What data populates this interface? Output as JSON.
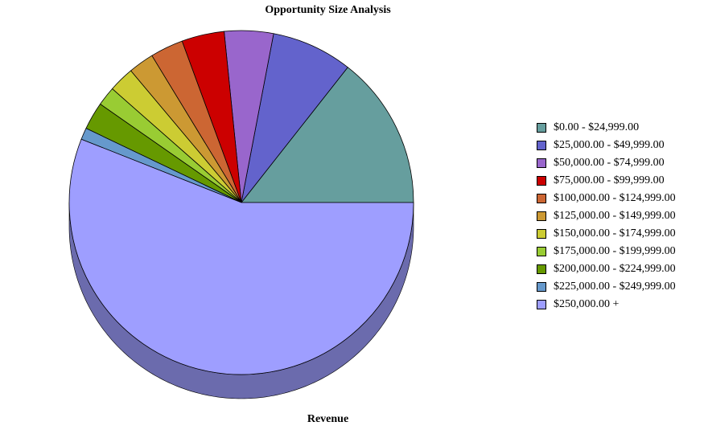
{
  "chart_data": {
    "type": "pie",
    "title": "Opportunity Size Analysis",
    "xlabel": "Revenue",
    "legend_position": "right",
    "three_d": true,
    "start_angle_deg": 0,
    "direction": "counterclockwise",
    "slices": [
      {
        "label": "$0.00 - $24,999.00",
        "value": 14.4,
        "color": "#669E9E"
      },
      {
        "label": "$25,000.00 - $49,999.00",
        "value": 7.6,
        "color": "#6363CC"
      },
      {
        "label": "$50,000.00 - $74,999.00",
        "value": 4.6,
        "color": "#9966CC"
      },
      {
        "label": "$75,000.00 - $99,999.00",
        "value": 4.0,
        "color": "#CC0000"
      },
      {
        "label": "$100,000.00 - $124,999.00",
        "value": 3.1,
        "color": "#CC6633"
      },
      {
        "label": "$125,000.00 - $149,999.00",
        "value": 2.4,
        "color": "#CC9933"
      },
      {
        "label": "$150,000.00 - $174,999.00",
        "value": 2.4,
        "color": "#CCCC33"
      },
      {
        "label": "$175,000.00 - $199,999.00",
        "value": 1.8,
        "color": "#99CC33"
      },
      {
        "label": "$200,000.00 - $224,999.00",
        "value": 2.6,
        "color": "#669900"
      },
      {
        "label": "$225,000.00 - $249,999.00",
        "value": 1.1,
        "color": "#6699CC"
      },
      {
        "label": "$250,000.00 +",
        "value": 56.0,
        "color": "#9E9EFF"
      }
    ]
  }
}
